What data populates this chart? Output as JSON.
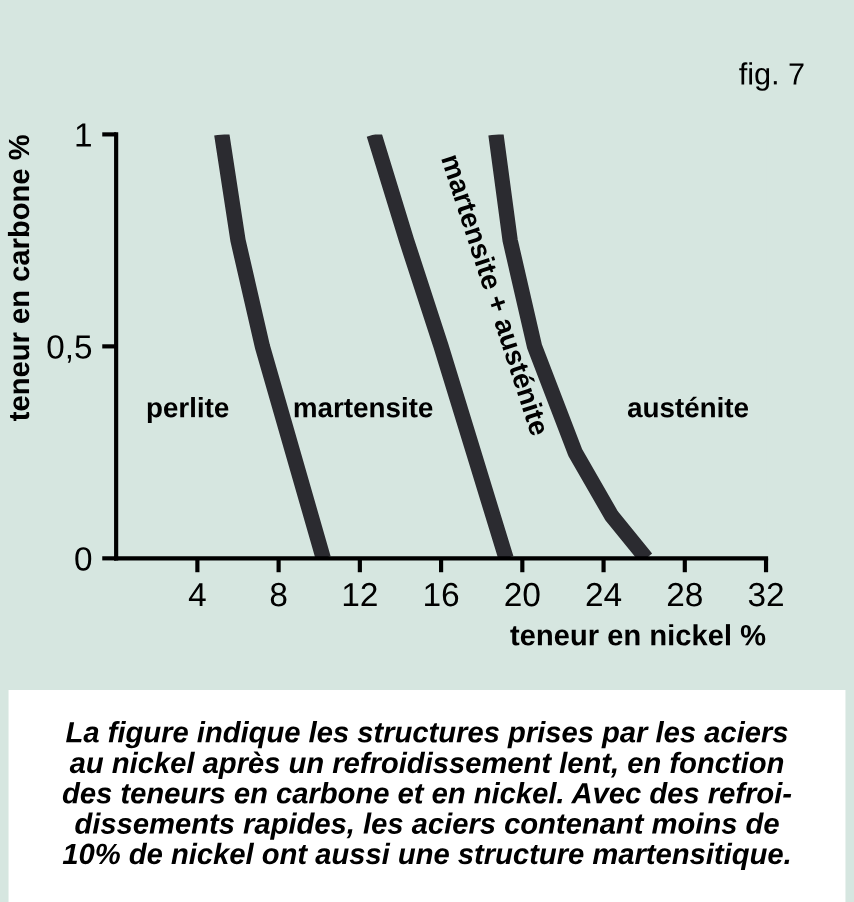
{
  "chart_data": {
    "type": "line",
    "title": "fig. 7",
    "xlabel": "teneur en nickel %",
    "ylabel": "teneur en carbone %",
    "xlim": [
      0,
      32
    ],
    "xticks": [
      4,
      8,
      12,
      16,
      20,
      24,
      28,
      32
    ],
    "ylim": [
      0,
      1
    ],
    "yticks": [
      0,
      {
        "value": 0.5,
        "label": "0,5"
      },
      1
    ],
    "grid": false,
    "legend": false,
    "marker": "none",
    "line_style": "solid",
    "series": [
      {
        "color": "#2b2b30",
        "x": [
          5.2,
          6.0,
          7.2,
          8.7,
          10.2
        ],
        "values": [
          1,
          0.75,
          0.5,
          0.25,
          0
        ]
      },
      {
        "color": "#2b2b30",
        "x": [
          12.7,
          14.3,
          16.0,
          17.6,
          19.2
        ],
        "values": [
          1,
          0.75,
          0.5,
          0.25,
          0
        ]
      },
      {
        "color": "#2b2b30",
        "x": [
          18.7,
          19.4,
          20.6,
          22.6,
          24.4,
          26.1
        ],
        "values": [
          1,
          0.75,
          0.5,
          0.25,
          0.1,
          0
        ]
      }
    ],
    "annotations": [
      "perlite",
      "martensite",
      "martensite + austénite",
      "austénite",
      "La figure indique les structures prises par les aciers\nau nickel après un refroidissement lent, en fonction\ndes teneurs en carbone et en nickel. Avec des refroi-\ndissements rapides, les aciers contenant moins de\n10% de nickel ont aussi une structure martensitique."
    ]
  }
}
